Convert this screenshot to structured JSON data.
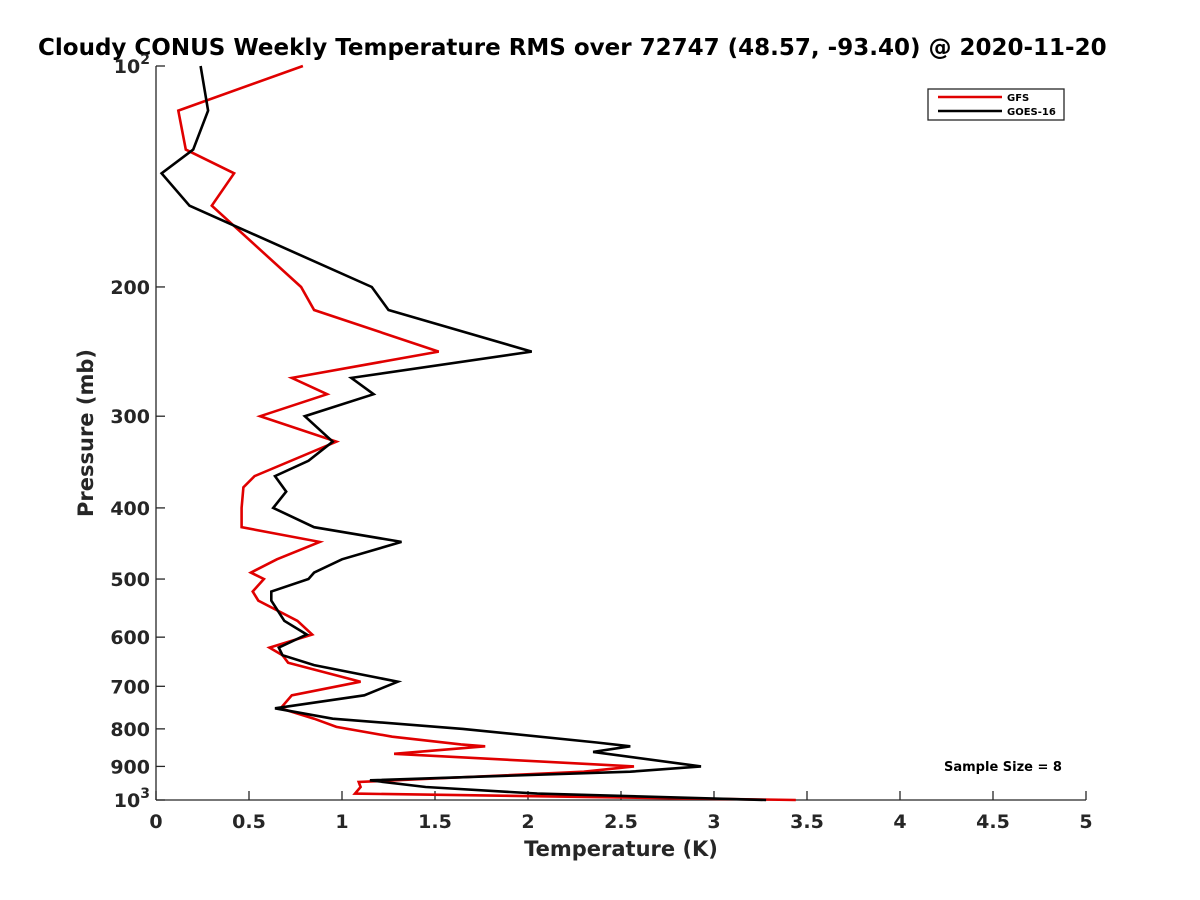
{
  "chart_data": {
    "type": "line",
    "title": "Cloudy CONUS Weekly Temperature RMS over 72747 (48.57, -93.40) @ 2020-11-20",
    "xlabel": "Temperature (K)",
    "ylabel": "Pressure (mb)",
    "xlim": [
      0,
      5
    ],
    "ylim": [
      100,
      1000
    ],
    "y_scale": "log",
    "y_direction": "reversed",
    "x_ticks": [
      0,
      0.5,
      1,
      1.5,
      2,
      2.5,
      3,
      3.5,
      4,
      4.5,
      5
    ],
    "x_tick_labels": [
      "0",
      "0.5",
      "1",
      "1.5",
      "2",
      "2.5",
      "3",
      "3.5",
      "4",
      "4.5",
      "5"
    ],
    "y_ticks": [
      {
        "value": 100,
        "label": "10",
        "exp": "2"
      },
      {
        "value": 200,
        "label": "200",
        "exp": ""
      },
      {
        "value": 300,
        "label": "300",
        "exp": ""
      },
      {
        "value": 400,
        "label": "400",
        "exp": ""
      },
      {
        "value": 500,
        "label": "500",
        "exp": ""
      },
      {
        "value": 600,
        "label": "600",
        "exp": ""
      },
      {
        "value": 700,
        "label": "700",
        "exp": ""
      },
      {
        "value": 800,
        "label": "800",
        "exp": ""
      },
      {
        "value": 900,
        "label": "900",
        "exp": ""
      },
      {
        "value": 1000,
        "label": "10",
        "exp": "3"
      }
    ],
    "grid": false,
    "legend_position": "top-right",
    "annotation": "Sample Size = 8",
    "series": [
      {
        "name": "GFS",
        "color": "#e00000",
        "points": [
          [
            0.79,
            100
          ],
          [
            0.12,
            115
          ],
          [
            0.16,
            130
          ],
          [
            0.42,
            140
          ],
          [
            0.3,
            155
          ],
          [
            0.78,
            200
          ],
          [
            0.85,
            215
          ],
          [
            1.52,
            245
          ],
          [
            0.73,
            266
          ],
          [
            0.92,
            280
          ],
          [
            0.56,
            300
          ],
          [
            0.97,
            325
          ],
          [
            0.53,
            362
          ],
          [
            0.47,
            375
          ],
          [
            0.46,
            400
          ],
          [
            0.46,
            425
          ],
          [
            0.88,
            445
          ],
          [
            0.65,
            470
          ],
          [
            0.51,
            490
          ],
          [
            0.58,
            500
          ],
          [
            0.52,
            520
          ],
          [
            0.55,
            535
          ],
          [
            0.76,
            570
          ],
          [
            0.84,
            595
          ],
          [
            0.61,
            620
          ],
          [
            0.68,
            635
          ],
          [
            0.71,
            650
          ],
          [
            1.1,
            690
          ],
          [
            0.73,
            720
          ],
          [
            0.67,
            750
          ],
          [
            0.85,
            775
          ],
          [
            0.97,
            795
          ],
          [
            1.27,
            820
          ],
          [
            1.64,
            840
          ],
          [
            1.77,
            845
          ],
          [
            1.28,
            865
          ],
          [
            2.57,
            900
          ],
          [
            2.3,
            915
          ],
          [
            1.09,
            945
          ],
          [
            1.1,
            960
          ],
          [
            1.07,
            980
          ],
          [
            3.44,
            1000
          ]
        ]
      },
      {
        "name": "GOES-16",
        "color": "#000000",
        "points": [
          [
            0.24,
            100
          ],
          [
            0.28,
            115
          ],
          [
            0.2,
            130
          ],
          [
            0.03,
            140
          ],
          [
            0.18,
            155
          ],
          [
            1.16,
            200
          ],
          [
            1.25,
            215
          ],
          [
            2.02,
            245
          ],
          [
            1.05,
            266
          ],
          [
            1.17,
            280
          ],
          [
            0.8,
            300
          ],
          [
            0.95,
            325
          ],
          [
            0.82,
            345
          ],
          [
            0.64,
            362
          ],
          [
            0.7,
            380
          ],
          [
            0.63,
            400
          ],
          [
            0.85,
            425
          ],
          [
            1.32,
            445
          ],
          [
            1.0,
            470
          ],
          [
            0.85,
            490
          ],
          [
            0.82,
            500
          ],
          [
            0.62,
            520
          ],
          [
            0.62,
            535
          ],
          [
            0.69,
            570
          ],
          [
            0.81,
            595
          ],
          [
            0.66,
            620
          ],
          [
            0.68,
            635
          ],
          [
            0.85,
            655
          ],
          [
            1.3,
            690
          ],
          [
            1.12,
            720
          ],
          [
            0.64,
            750
          ],
          [
            0.95,
            775
          ],
          [
            1.65,
            800
          ],
          [
            2.37,
            835
          ],
          [
            2.55,
            845
          ],
          [
            2.35,
            860
          ],
          [
            2.93,
            900
          ],
          [
            2.55,
            915
          ],
          [
            1.15,
            940
          ],
          [
            1.45,
            960
          ],
          [
            2.05,
            980
          ],
          [
            3.28,
            1000
          ]
        ]
      }
    ]
  }
}
